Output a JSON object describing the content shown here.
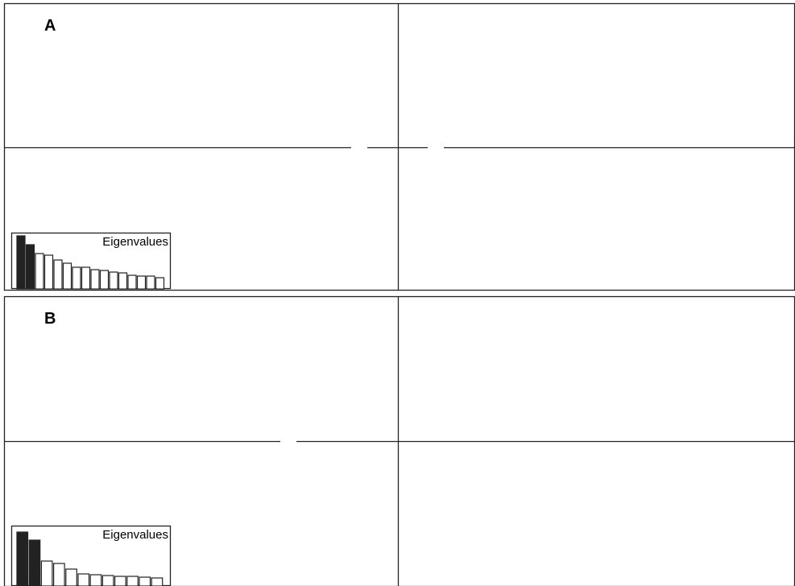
{
  "panels": [
    {
      "label": "A",
      "inset_title": "Eigenvalues"
    },
    {
      "label": "B",
      "inset_title": "Eigenvalues"
    }
  ],
  "chart_data": [
    {
      "type": "bar",
      "title": "Eigenvalues",
      "panel": "A",
      "values": [
        66,
        55,
        44,
        42,
        36,
        32,
        27,
        27,
        24,
        23,
        21,
        20,
        17,
        16,
        16,
        14
      ],
      "highlighted_count": 2,
      "colors": {
        "highlighted": "#222222",
        "other": "#ffffff",
        "stroke": "#222222"
      }
    },
    {
      "type": "bar",
      "title": "Eigenvalues",
      "panel": "B",
      "values": [
        67,
        57,
        31,
        28,
        21,
        15,
        14,
        13,
        12,
        12,
        11,
        10
      ],
      "highlighted_count": 2,
      "colors": {
        "highlighted": "#222222",
        "other": "#ffffff",
        "stroke": "#222222"
      }
    }
  ]
}
